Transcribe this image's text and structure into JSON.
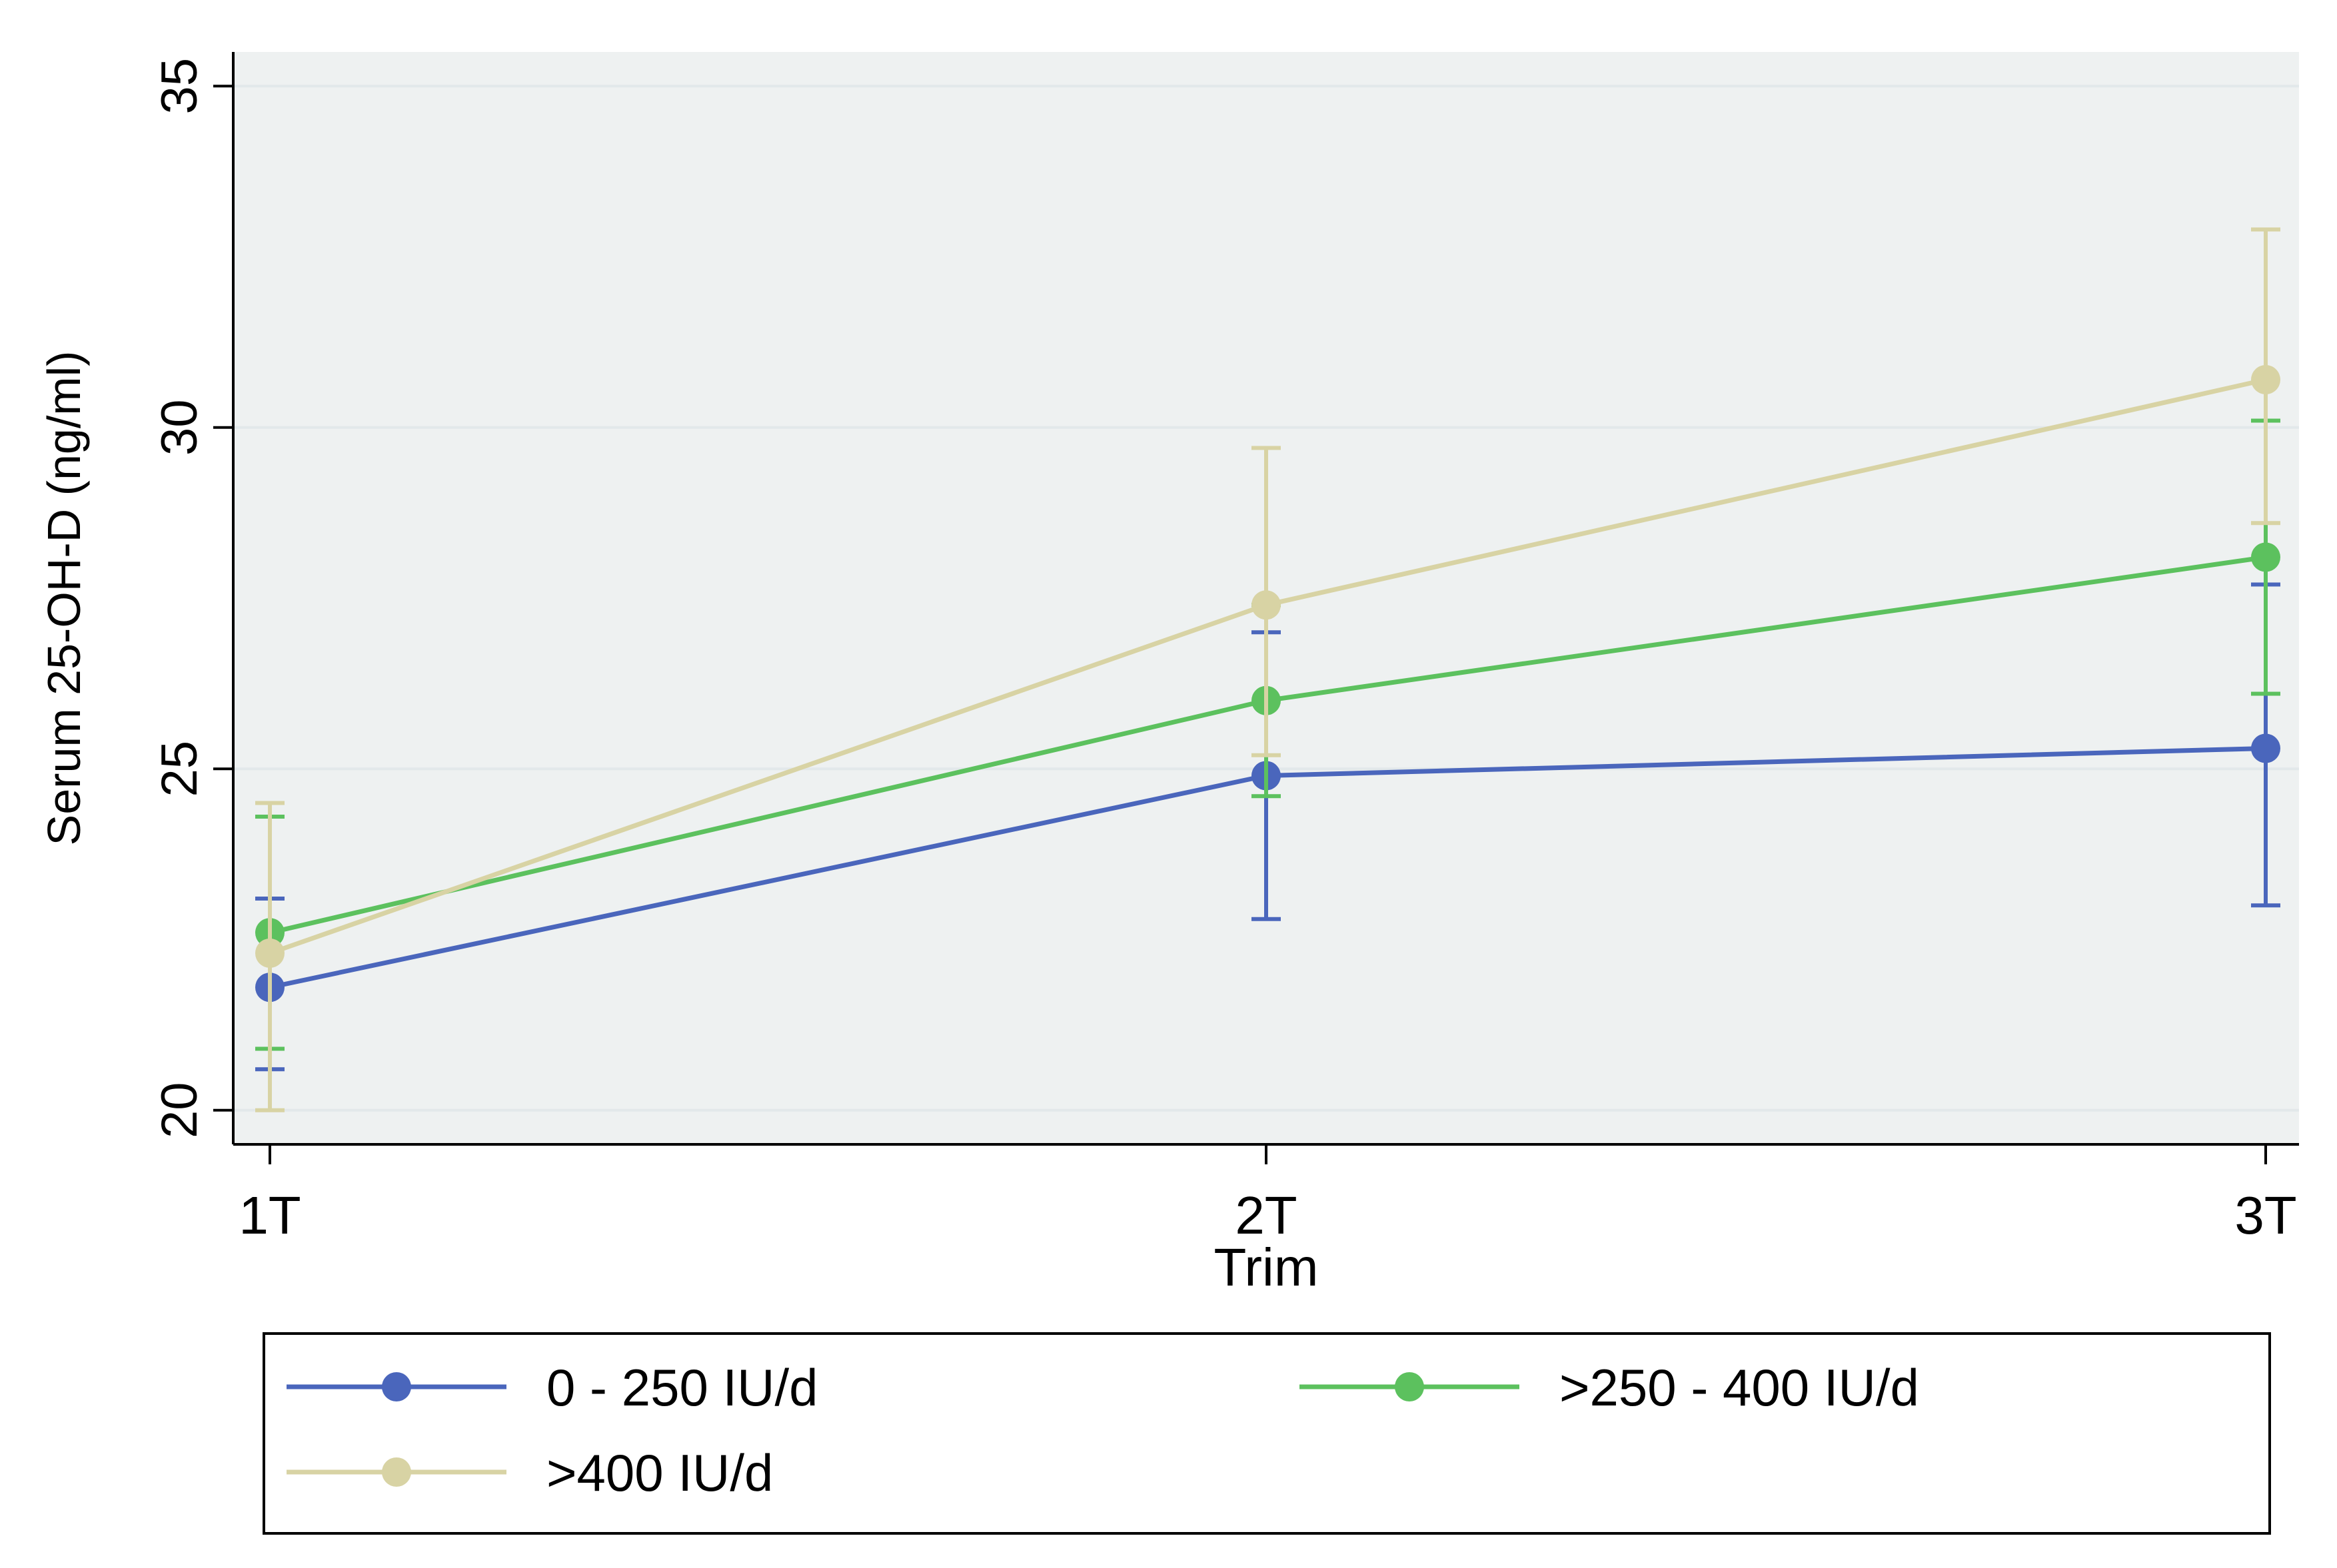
{
  "chart_data": {
    "type": "line",
    "title": "",
    "xlabel": "Trim",
    "ylabel": "Serum 25-OH-D (ng/ml)",
    "categories": [
      "1T",
      "2T",
      "3T"
    ],
    "ylim": [
      19.5,
      35.5
    ],
    "yticks": [
      20,
      25,
      30,
      35
    ],
    "yticklabels": [
      "20",
      "25",
      "30",
      "35"
    ],
    "grid": true,
    "legend_position": "bottom",
    "series": [
      {
        "name": "0 - 250 IU/d",
        "color": "#4a66bc",
        "values": [
          21.8,
          24.9,
          25.3
        ],
        "lower": [
          20.6,
          22.8,
          23.0
        ],
        "upper": [
          23.1,
          27.0,
          27.7
        ]
      },
      {
        "name": ">250 - 400 IU/d",
        "color": "#5cc15e",
        "values": [
          22.6,
          26.0,
          28.1
        ],
        "lower": [
          20.9,
          24.6,
          26.1
        ],
        "upper": [
          24.3,
          27.4,
          30.1
        ]
      },
      {
        "name": ">400 IU/d",
        "color": "#d8d3a4",
        "values": [
          22.3,
          27.4,
          30.7
        ],
        "lower": [
          20.0,
          25.2,
          28.6
        ],
        "upper": [
          24.5,
          29.7,
          32.9
        ]
      }
    ]
  }
}
